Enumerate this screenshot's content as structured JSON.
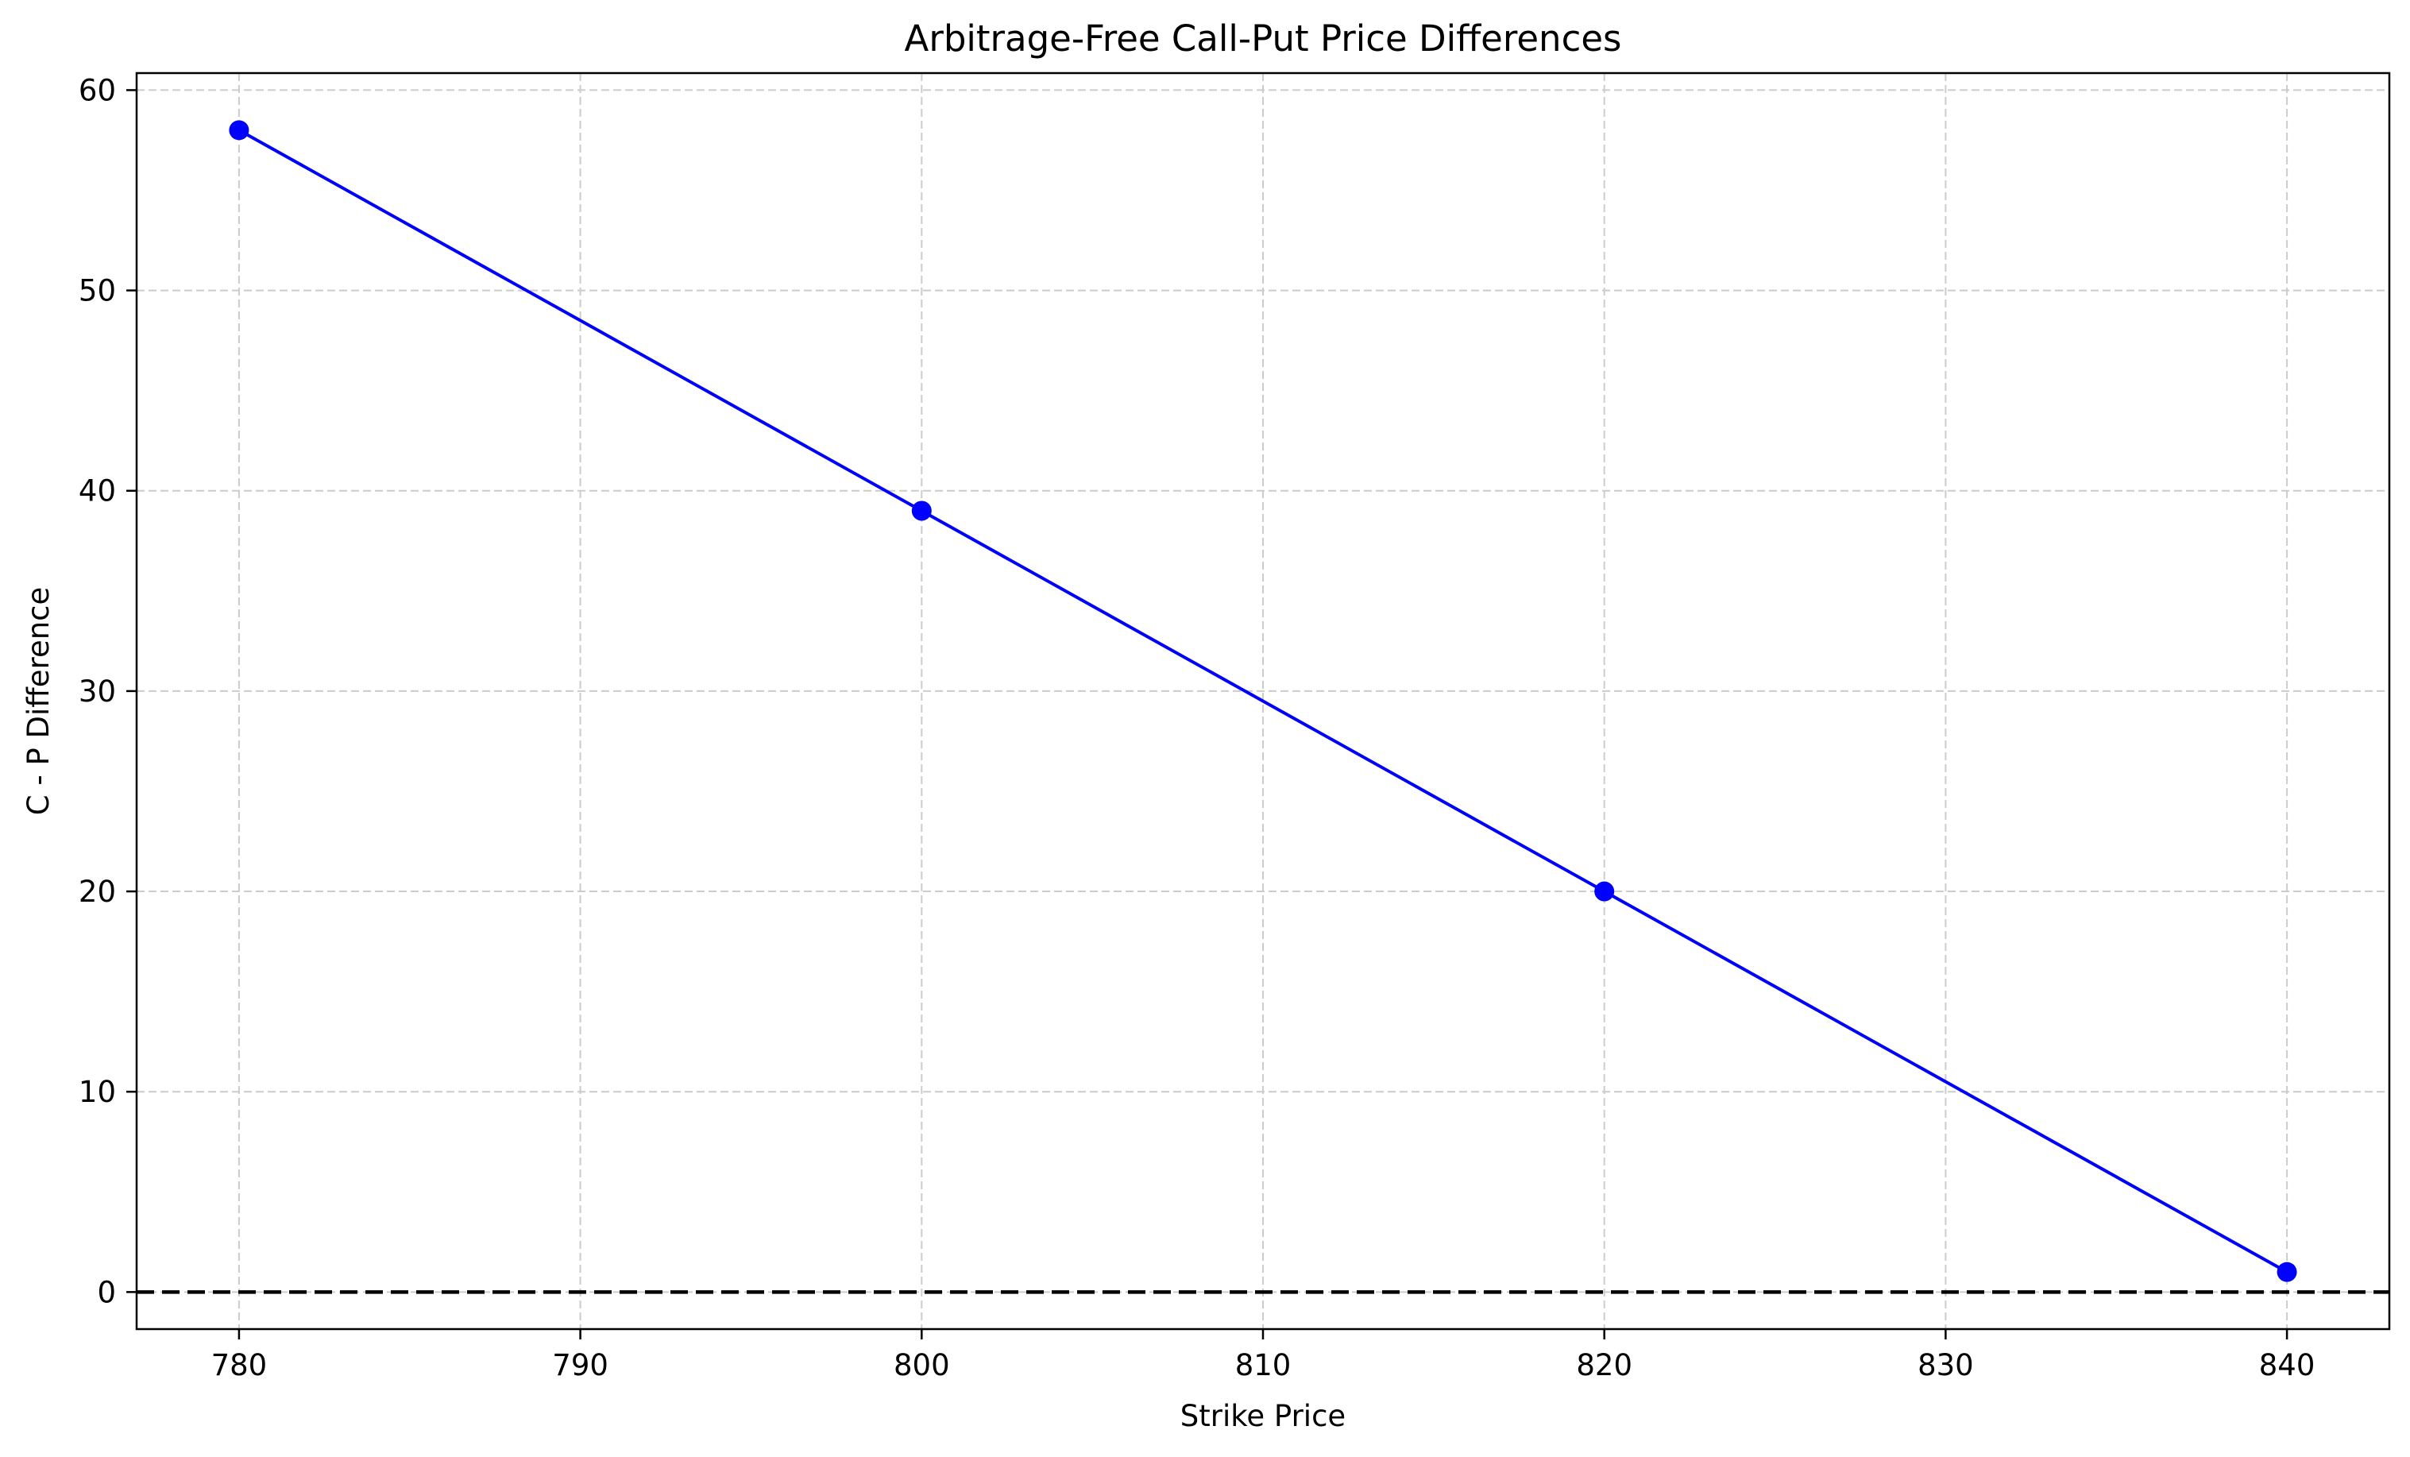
{
  "chart_data": {
    "type": "line",
    "title": "Arbitrage-Free Call-Put Price Differences",
    "xlabel": "Strike Price",
    "ylabel": "C - P Difference",
    "x": [
      780,
      800,
      820,
      840
    ],
    "series": [
      {
        "values": [
          58,
          39,
          20,
          1
        ],
        "color": "#0000ff",
        "marker": "circle"
      }
    ],
    "xticks": [
      780,
      790,
      800,
      810,
      820,
      830,
      840
    ],
    "yticks": [
      0,
      10,
      20,
      30,
      40,
      50,
      60
    ],
    "xlim": [
      777,
      843
    ],
    "ylim": [
      -1.85,
      60.85
    ],
    "grid": true,
    "reference_line": {
      "y": 0,
      "style": "dashed",
      "color": "#000000"
    }
  }
}
